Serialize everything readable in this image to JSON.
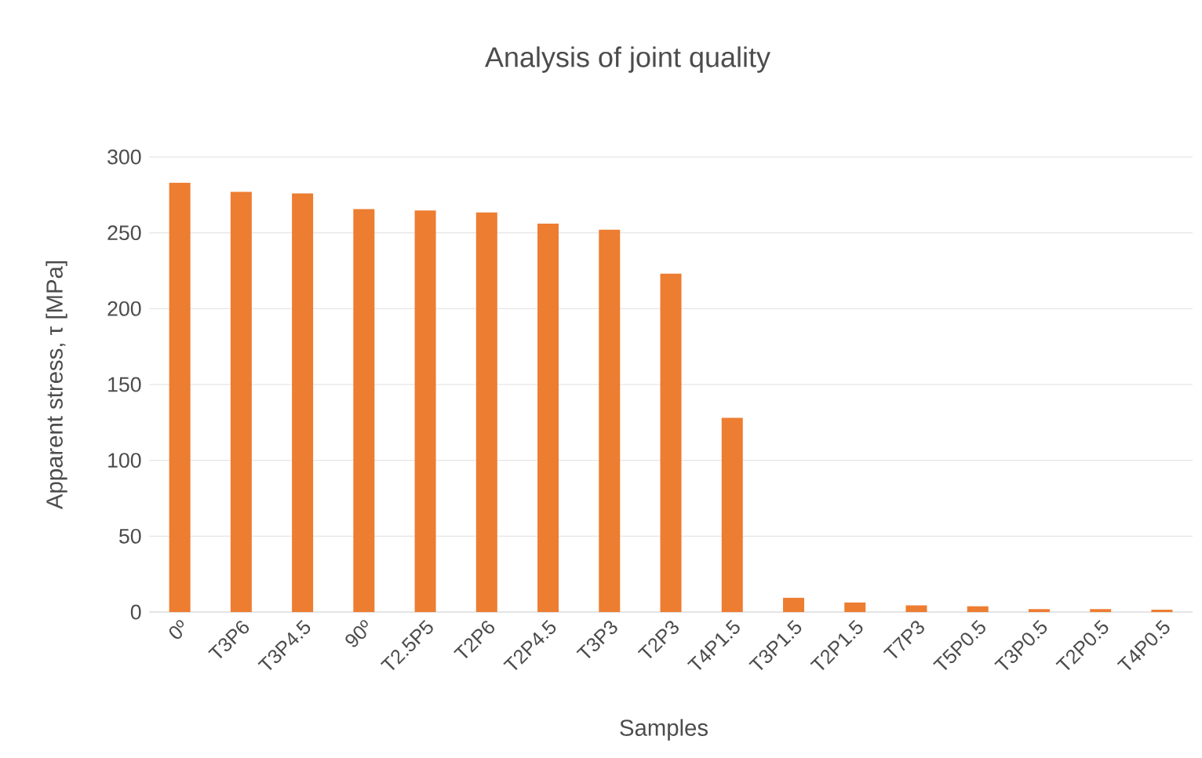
{
  "chart_data": {
    "type": "bar",
    "title": "Analysis of joint quality",
    "xlabel": "Samples",
    "ylabel": "Apparent stress, τ [MPa]",
    "categories": [
      "0º",
      "T3P6",
      "T3P4.5",
      "90º",
      "T2.5P5",
      "T2P6",
      "T2P4.5",
      "T3P3",
      "T2P3",
      "T4P1.5",
      "T3P1.5",
      "T2P1.5",
      "T7P3",
      "T5P0.5",
      "T3P0.5",
      "T2P0.5",
      "T4P0.5"
    ],
    "values": [
      283,
      277,
      276,
      265.6,
      264.7,
      263.4,
      256,
      252,
      223,
      128,
      9.4,
      6.3,
      4.4,
      3.8,
      1.9,
      1.9,
      1.6
    ],
    "color": "#ed7d31",
    "ylim": [
      0,
      300
    ],
    "yticks": [
      0,
      50,
      100,
      150,
      200,
      250,
      300
    ],
    "grid": "y"
  }
}
